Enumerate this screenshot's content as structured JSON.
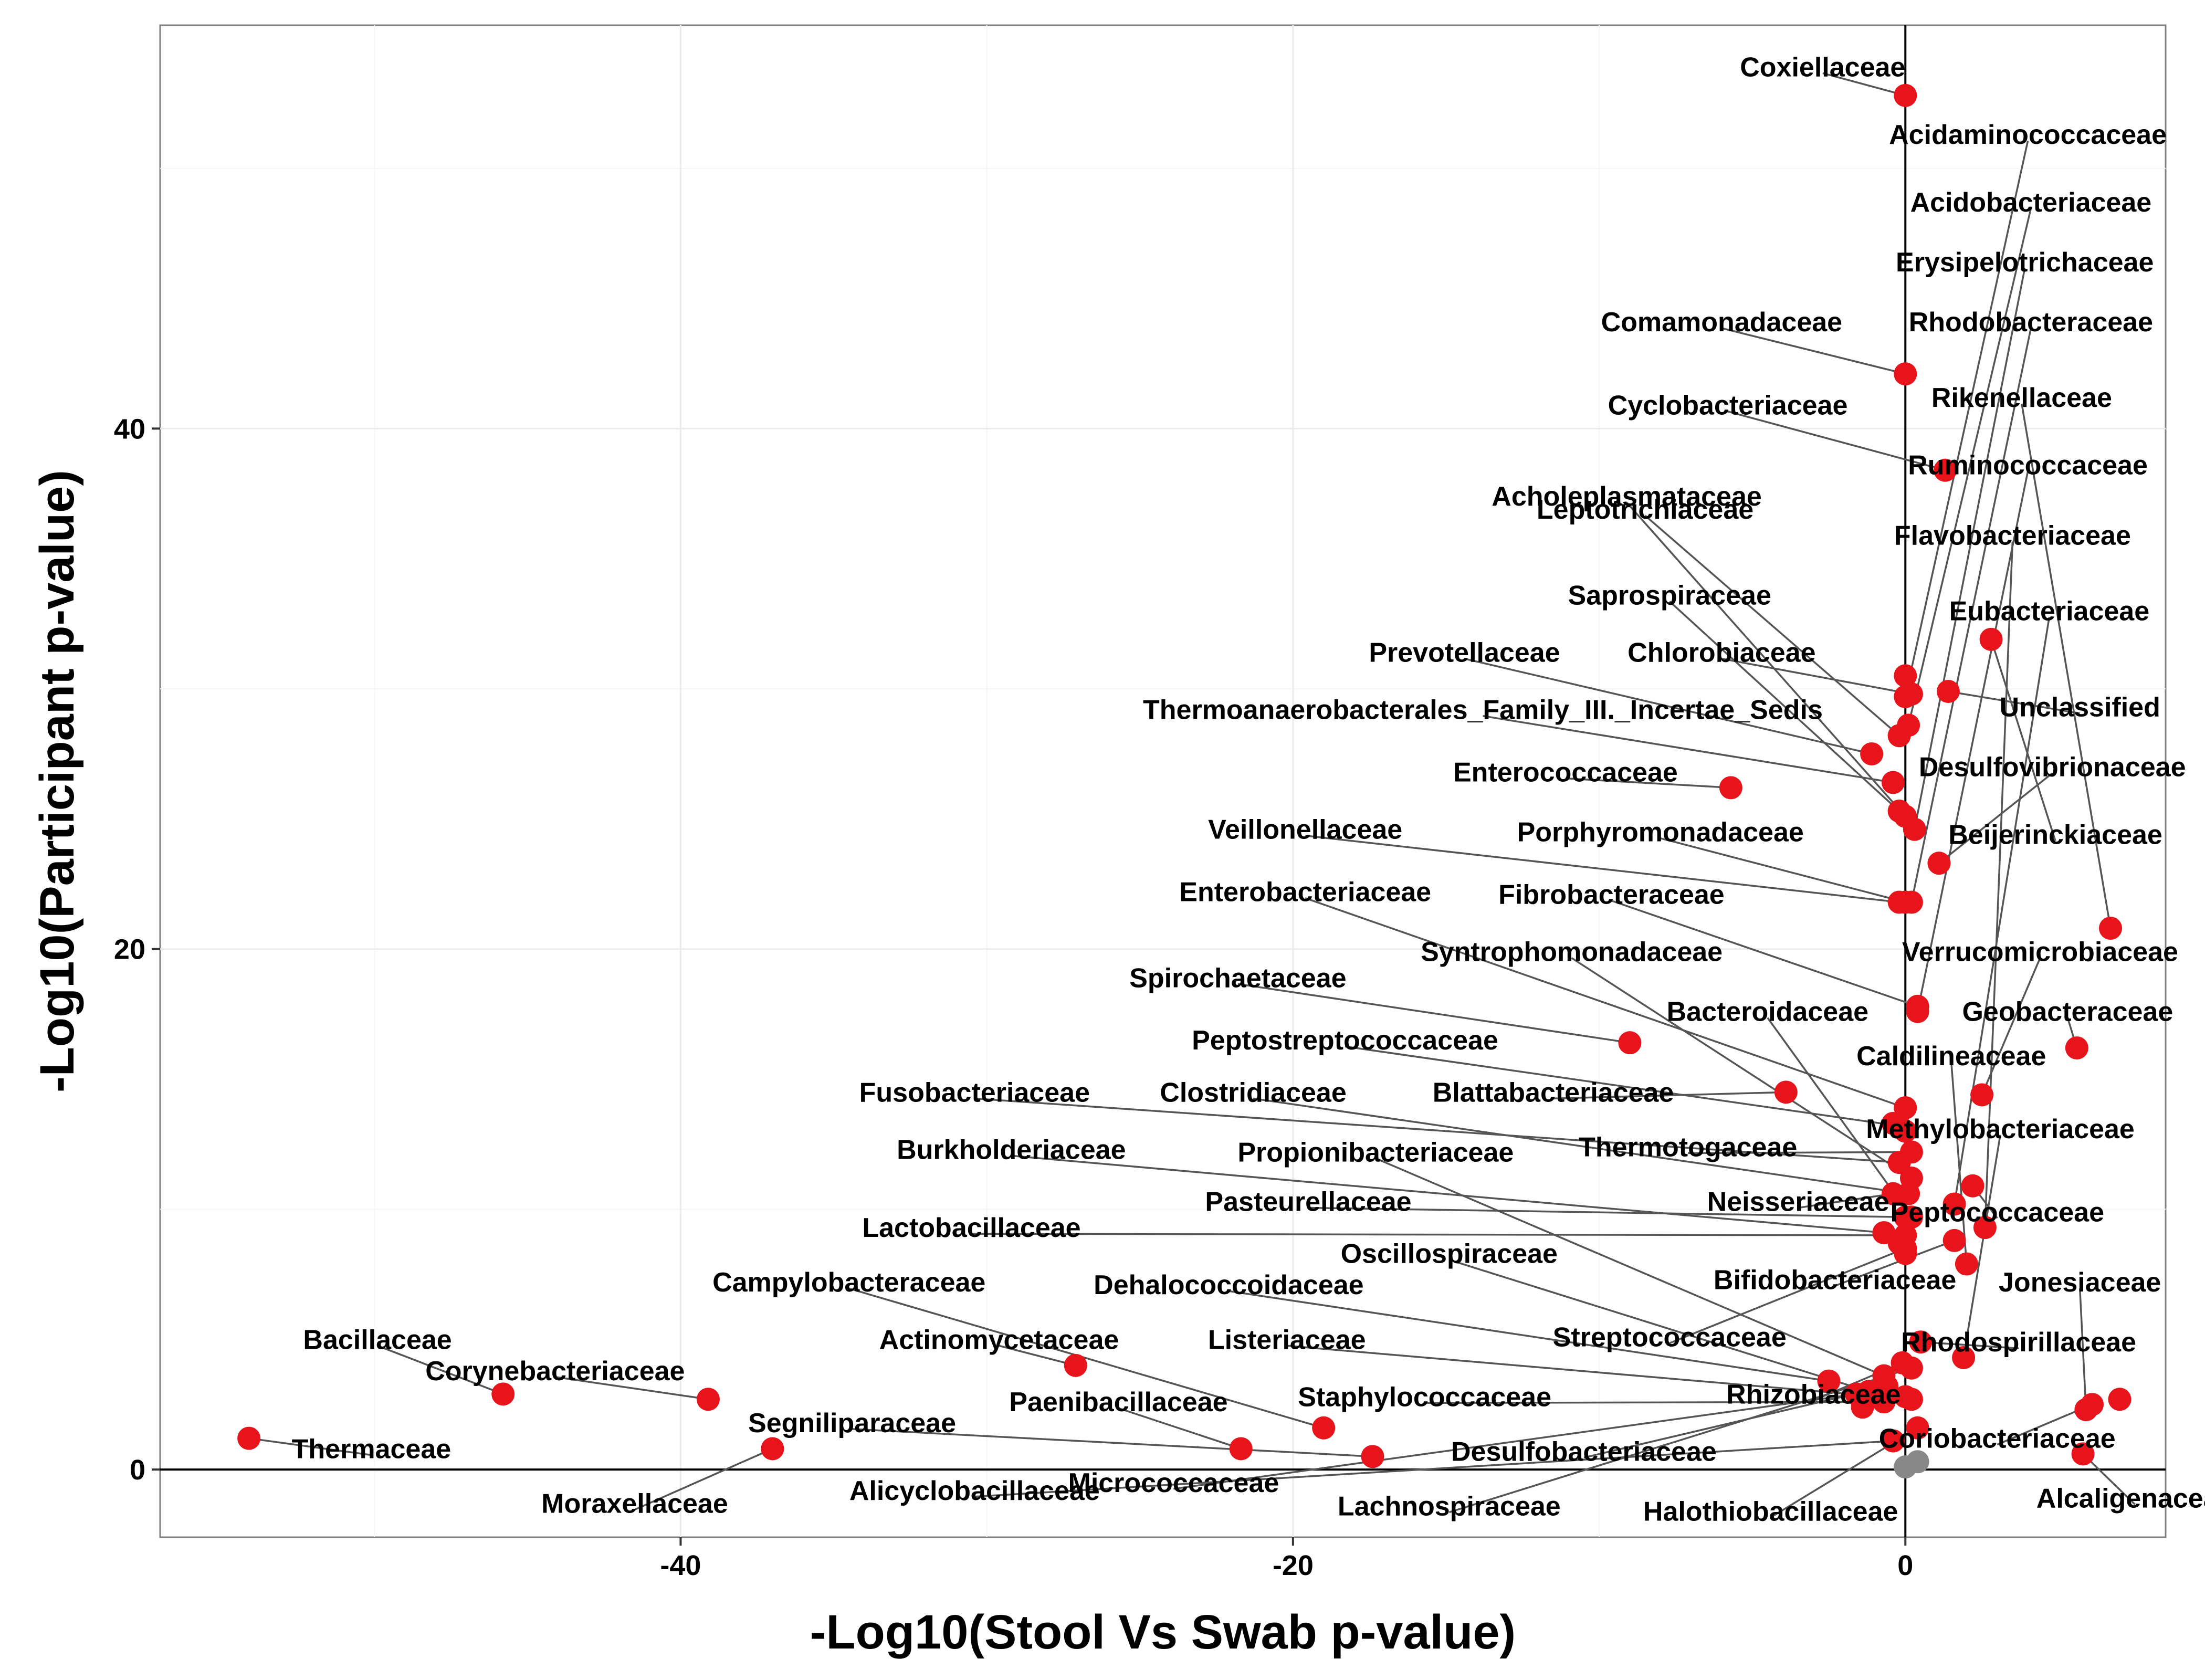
{
  "chart_data": {
    "type": "scatter",
    "xlabel": "-Log10(Stool Vs Swab p-value)",
    "ylabel": "-Log10(Participant p-value)",
    "xlim": [
      -57,
      8.5
    ],
    "ylim": [
      -2.6,
      55.5
    ],
    "xticks": [
      -40,
      -20,
      0
    ],
    "yticks": [
      0,
      20,
      40
    ],
    "grid": true,
    "colors": {
      "significant": "#e8141b",
      "nonsignificant": "#888888"
    },
    "points": [
      {
        "name": "Coxiellaceae",
        "x": 0.0,
        "y": 52.8,
        "lx": -2.7,
        "ly": 53.9
      },
      {
        "name": "Acidaminococcaceae",
        "x": 0.0,
        "y": 29.7,
        "lx": 4.0,
        "ly": 51.3
      },
      {
        "name": "Acidobacteriaceae",
        "x": 0.1,
        "y": 28.6,
        "lx": 4.1,
        "ly": 48.7
      },
      {
        "name": "Erysipelotrichaceae",
        "x": 0.3,
        "y": 24.6,
        "lx": 3.9,
        "ly": 46.4
      },
      {
        "name": "Comamonadaceae",
        "x": 0.0,
        "y": 42.1,
        "lx": -6.0,
        "ly": 44.1
      },
      {
        "name": "Rhodobacteraceae",
        "x": 0.2,
        "y": 21.8,
        "lx": 4.1,
        "ly": 44.1
      },
      {
        "name": "Cyclobacteriaceae",
        "x": 1.3,
        "y": 38.4,
        "lx": -5.8,
        "ly": 40.9
      },
      {
        "name": "Rikenellaceae",
        "x": 6.7,
        "y": 20.8,
        "lx": 3.8,
        "ly": 41.2
      },
      {
        "name": "Ruminococcaceae",
        "x": 0.4,
        "y": 17.6,
        "lx": 4.0,
        "ly": 38.6
      },
      {
        "name": "Acholeplasmataceae",
        "x": 0.0,
        "y": 25.1,
        "lx": -9.1,
        "ly": 37.4
      },
      {
        "name": "Leptotrichiaceae",
        "x": -0.2,
        "y": 28.2,
        "lx": -8.5,
        "ly": 36.9
      },
      {
        "name": "Flavobacteriaceae",
        "x": 2.6,
        "y": 9.3,
        "lx": 3.5,
        "ly": 35.9
      },
      {
        "name": "Saprospiraceae",
        "x": -0.2,
        "y": 25.3,
        "lx": -7.7,
        "ly": 33.6
      },
      {
        "name": "Eubacteriaceae",
        "x": 1.6,
        "y": 10.2,
        "lx": 4.7,
        "ly": 33.0
      },
      {
        "name": "Prevotellaceae",
        "x": -1.1,
        "y": 27.5,
        "lx": -14.4,
        "ly": 31.4
      },
      {
        "name": "Chlorobiaceae",
        "x": 0.2,
        "y": 29.8,
        "lx": -6.0,
        "ly": 31.4
      },
      {
        "name": "Unclassified",
        "x": 1.4,
        "y": 29.9,
        "lx": 5.7,
        "ly": 29.3
      },
      {
        "name": "Thermoanaerobacterales_Family_III._Incertae_Sedis",
        "x": -0.4,
        "y": 26.4,
        "lx": -13.8,
        "ly": 29.2
      },
      {
        "name": "Desulfovibrionaceae",
        "x": 1.1,
        "y": 23.3,
        "lx": 4.8,
        "ly": 27.0
      },
      {
        "name": "Enterococcaceae",
        "x": -5.7,
        "y": 26.2,
        "lx": -11.1,
        "ly": 26.8
      },
      {
        "name": "Porphyromonadaceae",
        "x": 0.0,
        "y": 21.8,
        "lx": -8.0,
        "ly": 24.5
      },
      {
        "name": "Beijerinckiaceae",
        "x": 2.8,
        "y": 31.9,
        "lx": 4.9,
        "ly": 24.4
      },
      {
        "name": "Veillonellaceae",
        "x": -0.2,
        "y": 21.8,
        "lx": -19.6,
        "ly": 24.6
      },
      {
        "name": "Fibrobacteraceae",
        "x": 0.4,
        "y": 17.8,
        "lx": -9.6,
        "ly": 22.1
      },
      {
        "name": "Enterobacteriaceae",
        "x": 0.0,
        "y": 13.9,
        "lx": -19.6,
        "ly": 22.2
      },
      {
        "name": "Verrucomicrobiaceae",
        "x": 2.5,
        "y": 14.4,
        "lx": 4.4,
        "ly": 19.9
      },
      {
        "name": "Syntrophomonadaceae",
        "x": 0.2,
        "y": 11.2,
        "lx": -10.9,
        "ly": 19.9
      },
      {
        "name": "Spirochaetaceae",
        "x": -9.0,
        "y": 16.4,
        "lx": -21.8,
        "ly": 18.9
      },
      {
        "name": "Geobacteraceae",
        "x": 5.6,
        "y": 16.2,
        "lx": 5.3,
        "ly": 17.6
      },
      {
        "name": "Bacteroidaceae",
        "x": 0.2,
        "y": 9.7,
        "lx": -4.5,
        "ly": 17.6
      },
      {
        "name": "Peptostreptococcaceae",
        "x": -0.2,
        "y": 13.2,
        "lx": -18.3,
        "ly": 16.5
      },
      {
        "name": "Caldilineaceae",
        "x": 2.0,
        "y": 7.9,
        "lx": 1.5,
        "ly": 15.9
      },
      {
        "name": "Fusobacteriaceae",
        "x": -0.2,
        "y": 11.8,
        "lx": -30.4,
        "ly": 14.5
      },
      {
        "name": "Clostridiaceae",
        "x": 0.1,
        "y": 10.6,
        "lx": -21.3,
        "ly": 14.5
      },
      {
        "name": "Blattabacteriaceae",
        "x": -3.9,
        "y": 14.5,
        "lx": -11.5,
        "ly": 14.5
      },
      {
        "name": "Methylobacteriaceae",
        "x": 1.9,
        "y": 4.3,
        "lx": 3.1,
        "ly": 13.1
      },
      {
        "name": "Thermotogaceae",
        "x": 0.2,
        "y": 12.2,
        "lx": -7.1,
        "ly": 12.4
      },
      {
        "name": "Burkholderiaceae",
        "x": -0.7,
        "y": 9.1,
        "lx": -29.2,
        "ly": 12.3
      },
      {
        "name": "Propionibacteriaceae",
        "x": -0.7,
        "y": 3.6,
        "lx": -17.3,
        "ly": 12.2
      },
      {
        "name": "Pasteurellaceae",
        "x": 0.0,
        "y": 9.7,
        "lx": -19.5,
        "ly": 10.3
      },
      {
        "name": "Neisseriaceae",
        "x": -0.4,
        "y": 10.6,
        "lx": -3.5,
        "ly": 10.3
      },
      {
        "name": "Peptococcaceae",
        "x": 2.2,
        "y": 10.9,
        "lx": 3.0,
        "ly": 9.9
      },
      {
        "name": "Lactobacillaceae",
        "x": 0.0,
        "y": 9.0,
        "lx": -30.5,
        "ly": 9.3
      },
      {
        "name": "Oscillospiraceae",
        "x": -1.2,
        "y": 3.0,
        "lx": -14.9,
        "ly": 8.3
      },
      {
        "name": "Bifidobacteriaceae",
        "x": 1.6,
        "y": 8.8,
        "lx": -2.3,
        "ly": 7.3
      },
      {
        "name": "Campylobacteraceae",
        "x": -19.0,
        "y": 1.6,
        "lx": -34.5,
        "ly": 7.2
      },
      {
        "name": "Dehalococcoidaceae",
        "x": -2.5,
        "y": 3.4,
        "lx": -22.1,
        "ly": 7.1
      },
      {
        "name": "Jonesiaceae",
        "x": 5.9,
        "y": 2.3,
        "lx": 5.7,
        "ly": 7.2
      },
      {
        "name": "Bacillaceae",
        "x": -45.8,
        "y": 2.9,
        "lx": -49.9,
        "ly": 5.0
      },
      {
        "name": "Actinomycetaceae",
        "x": -27.1,
        "y": 4.0,
        "lx": -29.6,
        "ly": 5.0
      },
      {
        "name": "Listeriaceae",
        "x": 0.2,
        "y": 2.7,
        "lx": -20.2,
        "ly": 5.0
      },
      {
        "name": "Streptococcaceae",
        "x": 0.0,
        "y": 8.5,
        "lx": -7.7,
        "ly": 5.1
      },
      {
        "name": "Rhodospirillaceae",
        "x": 0.5,
        "y": 4.9,
        "lx": 3.7,
        "ly": 4.9
      },
      {
        "name": "Corynebacteriaceae",
        "x": -39.1,
        "y": 2.7,
        "lx": -44.1,
        "ly": 3.8
      },
      {
        "name": "Paenibacillaceae",
        "x": -21.7,
        "y": 0.8,
        "lx": -25.7,
        "ly": 2.6
      },
      {
        "name": "Staphylococcaceae",
        "x": -0.7,
        "y": 2.6,
        "lx": -15.7,
        "ly": 2.8
      },
      {
        "name": "Rhizobiaceae",
        "x": -0.1,
        "y": 4.1,
        "lx": -3.0,
        "ly": 2.9
      },
      {
        "name": "Segniliparaceae",
        "x": -17.4,
        "y": 0.5,
        "lx": -34.4,
        "ly": 1.8
      },
      {
        "name": "Thermaceae",
        "x": -54.1,
        "y": 1.2,
        "lx": -50.1,
        "ly": 0.8
      },
      {
        "name": "Desulfobacteriaceae",
        "x": -0.6,
        "y": 3.2,
        "lx": -10.5,
        "ly": 0.7
      },
      {
        "name": "Coriobacteriaceae",
        "x": 6.1,
        "y": 2.5,
        "lx": 3.0,
        "ly": 1.2
      },
      {
        "name": "Moraxellaceae",
        "x": -37.0,
        "y": 0.8,
        "lx": -41.5,
        "ly": -1.3
      },
      {
        "name": "Alicyclobacillaceae",
        "x": -0.4,
        "y": 1.1,
        "lx": -30.4,
        "ly": -0.8
      },
      {
        "name": "Micrococcaceae",
        "x": -1.6,
        "y": 2.9,
        "lx": -23.9,
        "ly": -0.5
      },
      {
        "name": "Lachnospiraceae",
        "x": 0.2,
        "y": 3.9,
        "lx": -14.9,
        "ly": -1.4
      },
      {
        "name": "Halothiobacillaceae",
        "x": 0.4,
        "y": 1.6,
        "lx": -4.4,
        "ly": -1.6
      },
      {
        "name": "Alcaligenaceae",
        "x": 5.8,
        "y": 0.6,
        "lx": 7.5,
        "ly": -1.1
      },
      {
        "name": "",
        "x": 0.0,
        "y": 2.8
      },
      {
        "name": "",
        "x": 0.0,
        "y": 13.0
      },
      {
        "name": "",
        "x": -1.4,
        "y": 2.4
      },
      {
        "name": "",
        "x": 7.0,
        "y": 2.7
      },
      {
        "name": "",
        "x": 0.0,
        "y": 8.3
      },
      {
        "name": "",
        "x": -0.2,
        "y": 8.7
      },
      {
        "name": "",
        "x": 0.0,
        "y": 30.5
      },
      {
        "name": "",
        "x": -0.4,
        "y": 13.3
      }
    ],
    "nonsignificant_points": [
      {
        "x": 0.4,
        "y": 0.3
      },
      {
        "x": 0.0,
        "y": 0.1
      }
    ]
  }
}
